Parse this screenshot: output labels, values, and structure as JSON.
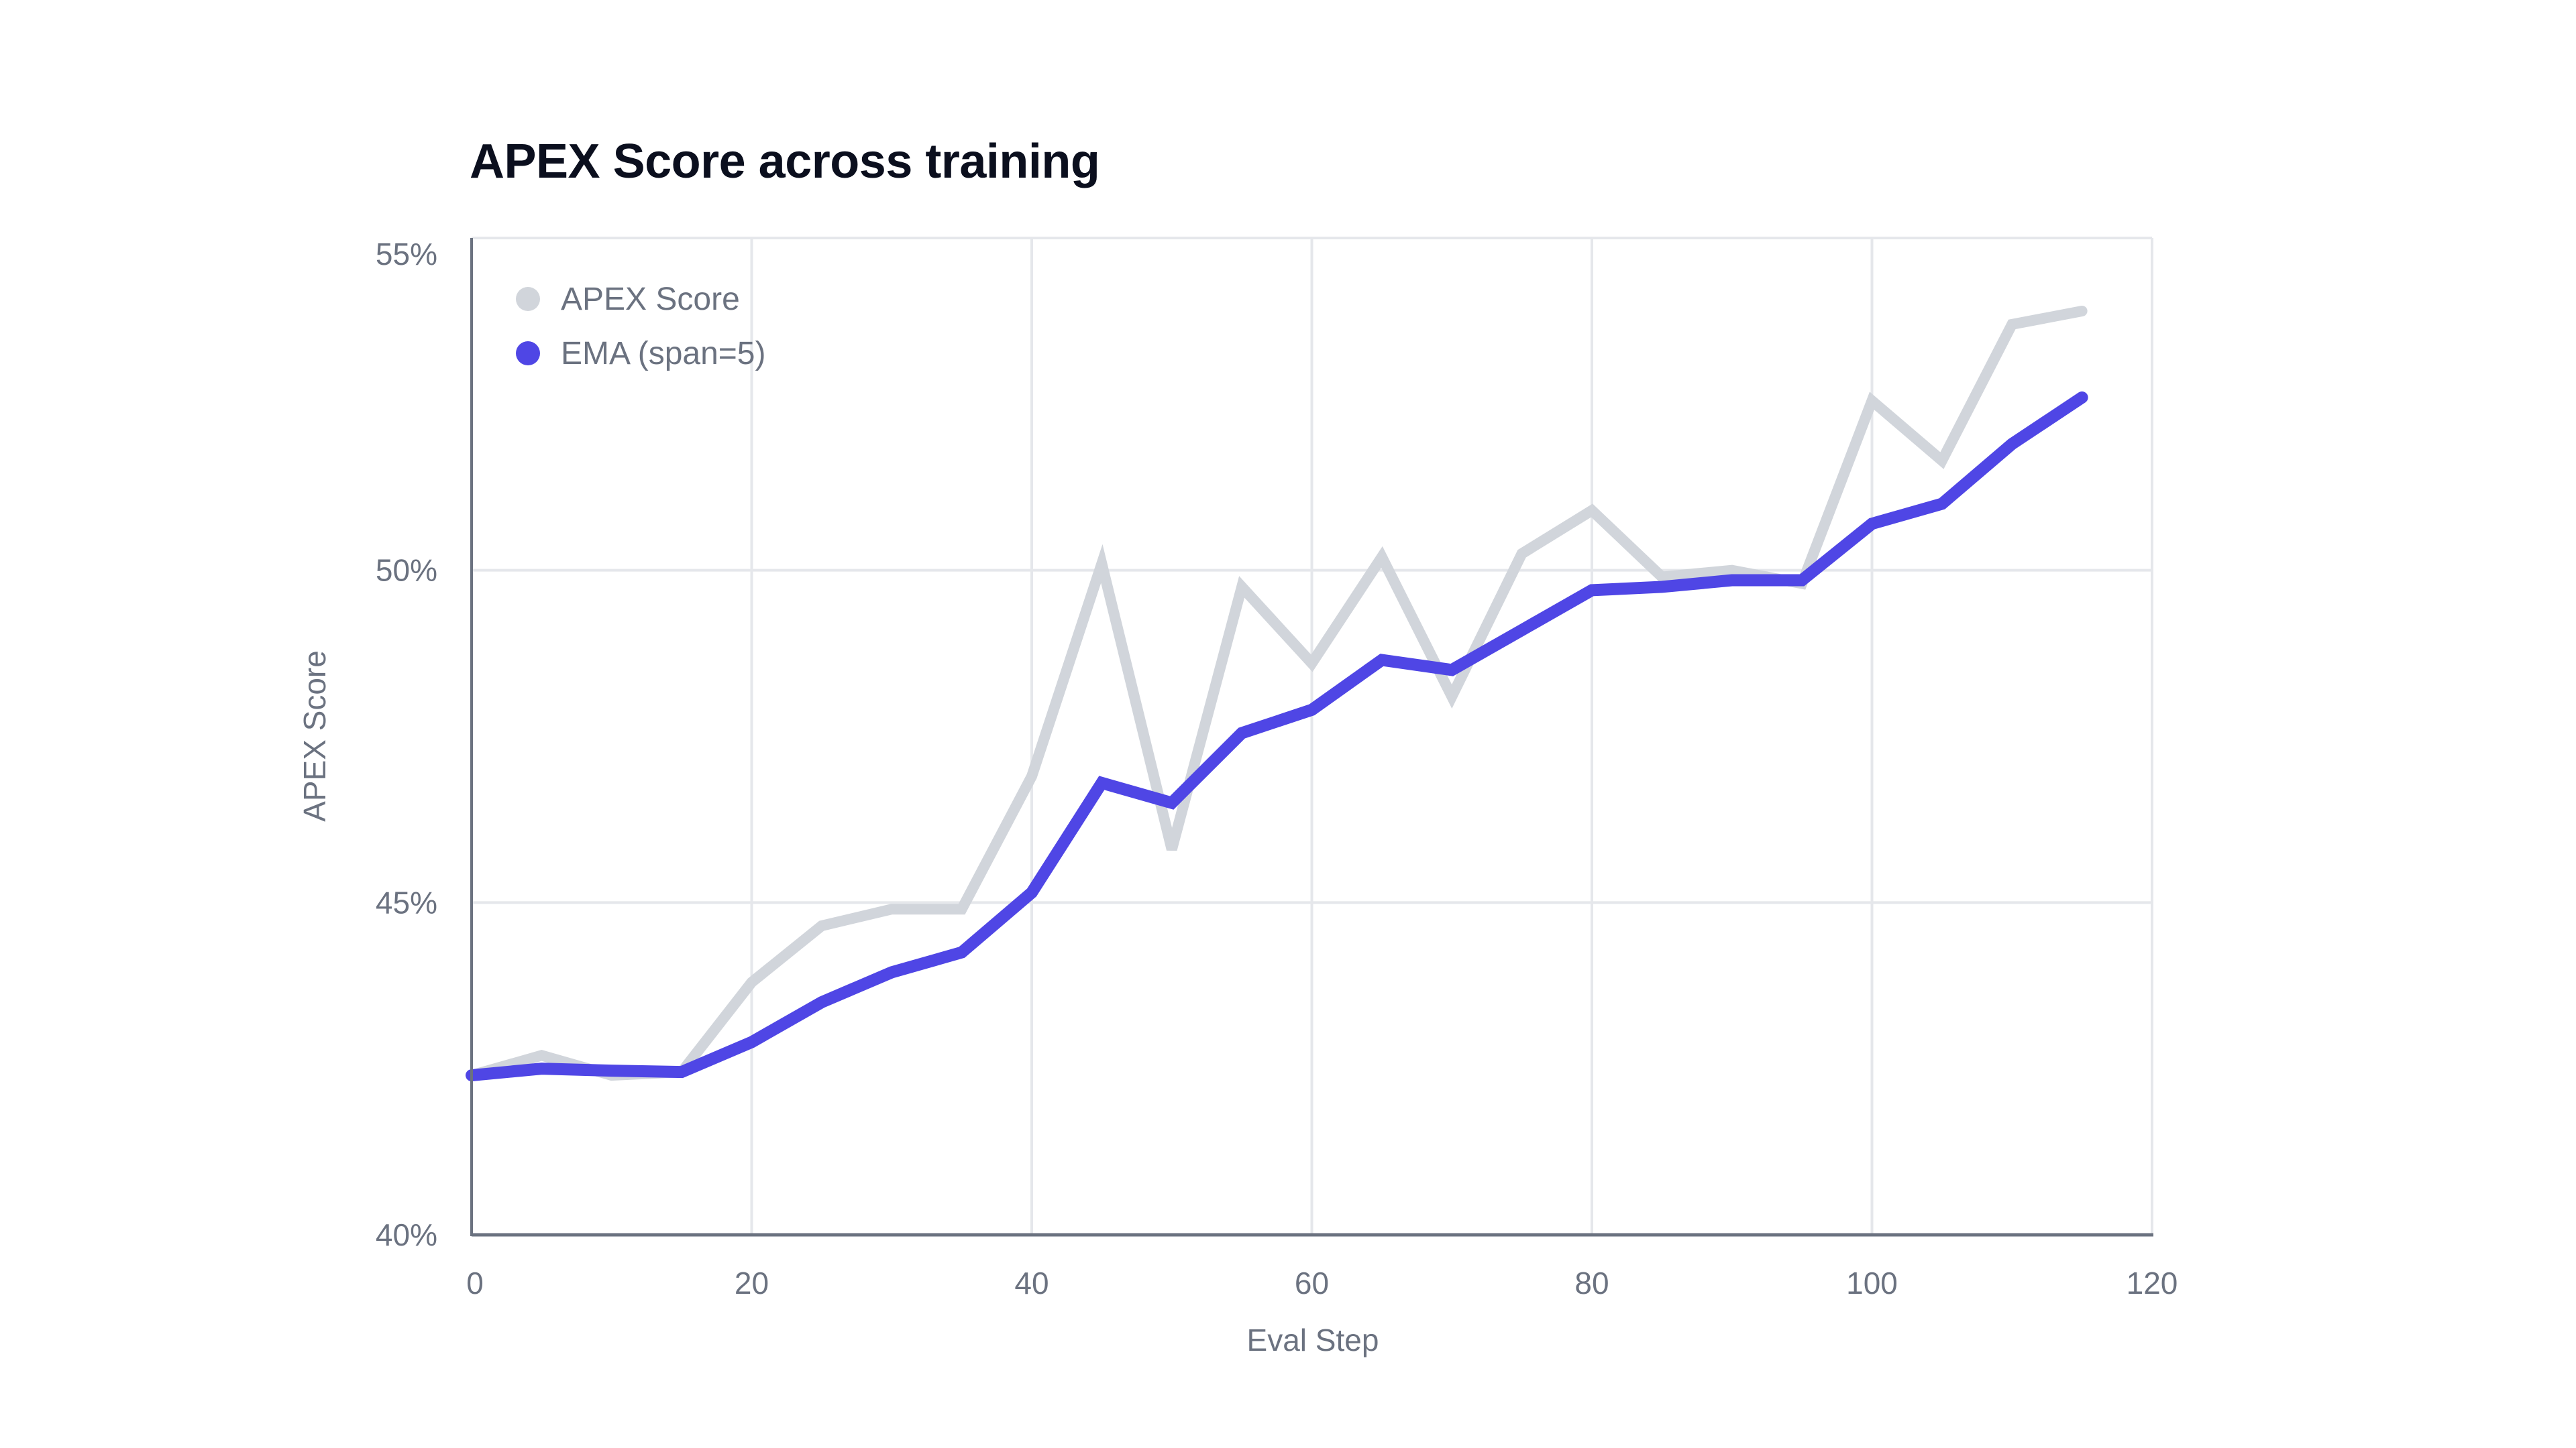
{
  "chart_data": {
    "type": "line",
    "title": "APEX Score across training",
    "xlabel": "Eval Step",
    "ylabel": "APEX Score",
    "xlim": [
      0,
      120
    ],
    "ylim": [
      40,
      55
    ],
    "xticks": [
      0,
      20,
      40,
      60,
      80,
      100,
      120
    ],
    "yticks": [
      40,
      45,
      50,
      55
    ],
    "ytick_labels": [
      "40%",
      "45%",
      "50%",
      "55%"
    ],
    "grid": true,
    "legend_position": "upper left",
    "x": [
      0,
      5,
      10,
      15,
      20,
      25,
      30,
      35,
      40,
      45,
      50,
      55,
      60,
      65,
      70,
      75,
      80,
      85,
      90,
      95,
      100,
      105,
      110,
      115
    ],
    "series": [
      {
        "name": "APEX Score",
        "color": "#d1d5db",
        "values": [
          42.4,
          42.7,
          42.4,
          42.45,
          43.8,
          44.65,
          44.9,
          44.9,
          46.9,
          50.1,
          45.8,
          49.75,
          48.6,
          50.2,
          48.1,
          50.25,
          50.9,
          49.9,
          50.0,
          49.8,
          52.55,
          51.65,
          53.7,
          53.9
        ]
      },
      {
        "name": "EMA (span=5)",
        "color": "#4f46e5",
        "values": [
          42.4,
          42.5,
          42.47,
          42.45,
          42.9,
          43.5,
          43.95,
          44.25,
          45.15,
          46.8,
          46.5,
          47.55,
          47.9,
          48.65,
          48.5,
          49.1,
          49.7,
          49.75,
          49.85,
          49.85,
          50.7,
          51.0,
          51.9,
          52.6
        ]
      }
    ]
  },
  "legend": {
    "items": [
      {
        "label": "APEX Score",
        "color": "#d1d5db"
      },
      {
        "label": "EMA (span=5)",
        "color": "#4f46e5"
      }
    ]
  }
}
